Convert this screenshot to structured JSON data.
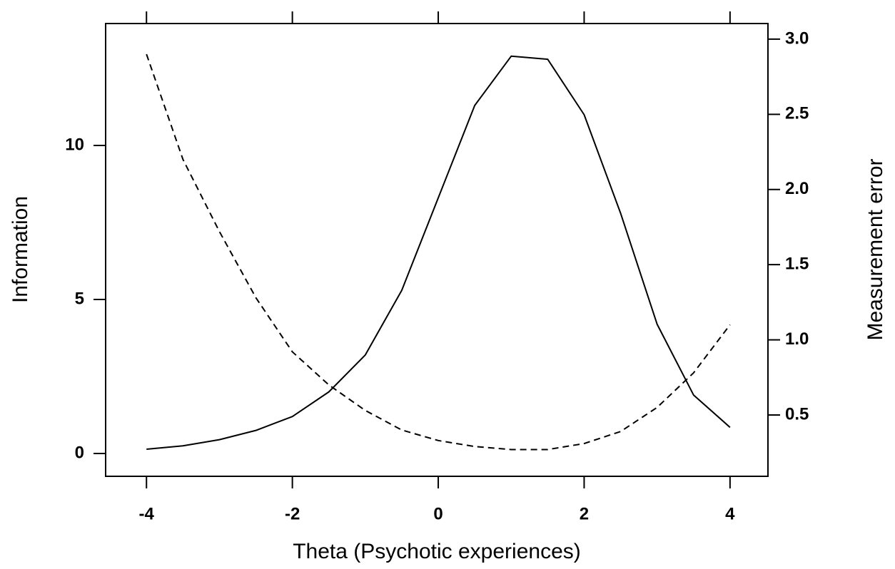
{
  "chart_data": {
    "type": "line",
    "x_label": "Theta (Psychotic experiences)",
    "y_label": "Information",
    "y2_label": "Measurement error",
    "x": [
      -4,
      -3.5,
      -3,
      -2.5,
      -2,
      -1.5,
      -1,
      -0.5,
      0,
      0.5,
      1,
      1.5,
      2,
      2.5,
      3,
      3.5,
      4
    ],
    "series": [
      {
        "color": "#000000",
        "dash": "solid",
        "axis": "y",
        "values": [
          0.14,
          0.25,
          0.45,
          0.75,
          1.2,
          2.0,
          3.2,
          5.3,
          8.3,
          11.3,
          12.9,
          12.8,
          11.0,
          7.8,
          4.2,
          1.9,
          0.85
        ]
      },
      {
        "color": "#000000",
        "dash": "dashed",
        "axis": "y2",
        "values": [
          2.9,
          2.2,
          1.72,
          1.28,
          0.92,
          0.7,
          0.53,
          0.4,
          0.33,
          0.29,
          0.27,
          0.27,
          0.31,
          0.39,
          0.55,
          0.78,
          1.1
        ]
      }
    ],
    "xlim": [
      -4.56,
      4.52
    ],
    "xticks": [
      -4,
      -2,
      0,
      2,
      4
    ],
    "ylim": [
      -0.74,
      13.96
    ],
    "yticks": [
      0,
      5,
      10
    ],
    "y2lim": [
      0.092,
      3.104
    ],
    "y2ticks": [
      0.5,
      {
        "value": 1,
        "label": "1.0"
      },
      1.5,
      {
        "value": 2,
        "label": "2.0"
      },
      2.5,
      {
        "value": 3,
        "label": "3.0"
      }
    ],
    "grid": false
  }
}
